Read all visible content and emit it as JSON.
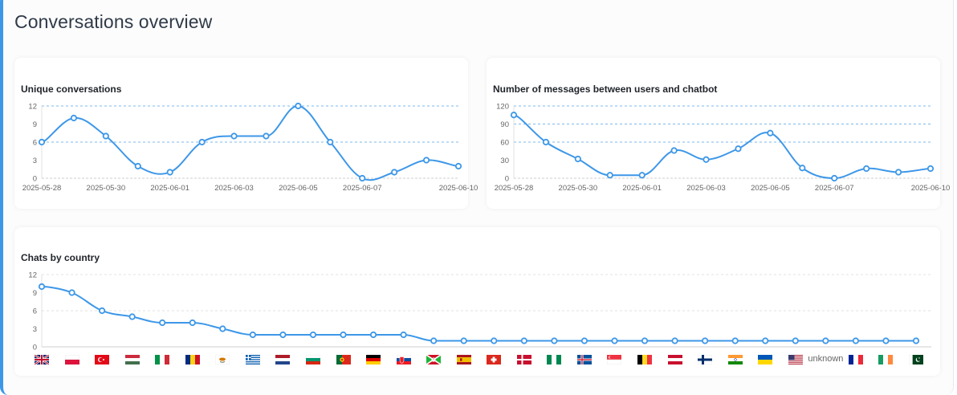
{
  "page": {
    "title": "Conversations overview"
  },
  "colors": {
    "accent": "#3d97e8",
    "line": "#3d97e8",
    "grid_blue": "#7db8ec",
    "grid_gray": "#e2e2e2",
    "axis_text": "#666666"
  },
  "cards": {
    "unique": {
      "title": "Unique conversations"
    },
    "messages": {
      "title": "Number of messages between users and chatbot"
    },
    "country": {
      "title": "Chats by country"
    }
  },
  "chart_data": [
    {
      "type": "line",
      "title": "Unique conversations",
      "x": [
        "2025-05-28",
        "2025-05-29",
        "2025-05-30",
        "2025-05-31",
        "2025-06-01",
        "2025-06-02",
        "2025-06-03",
        "2025-06-04",
        "2025-06-05",
        "2025-06-06",
        "2025-06-07",
        "2025-06-08",
        "2025-06-09",
        "2025-06-10"
      ],
      "x_tick_labels": [
        "2025-05-28",
        "2025-05-30",
        "2025-06-01",
        "2025-06-03",
        "2025-06-05",
        "2025-06-07",
        "2025-06-10"
      ],
      "values": [
        6,
        10,
        7,
        2,
        1,
        6,
        7,
        7,
        12,
        6,
        0,
        1,
        3,
        2
      ],
      "yticks": [
        0,
        3,
        6,
        9,
        12
      ],
      "ylim": [
        0,
        12
      ],
      "xlabel": "",
      "ylabel": "",
      "grid": "dashed at 6 and 12"
    },
    {
      "type": "line",
      "title": "Number of messages between users and chatbot",
      "x": [
        "2025-05-28",
        "2025-05-29",
        "2025-05-30",
        "2025-05-31",
        "2025-06-01",
        "2025-06-02",
        "2025-06-03",
        "2025-06-04",
        "2025-06-05",
        "2025-06-06",
        "2025-06-07",
        "2025-06-08",
        "2025-06-09",
        "2025-06-10"
      ],
      "x_tick_labels": [
        "2025-05-28",
        "2025-05-30",
        "2025-06-01",
        "2025-06-03",
        "2025-06-05",
        "2025-06-07",
        "2025-06-10"
      ],
      "values": [
        105,
        60,
        32,
        5,
        5,
        46,
        31,
        49,
        75,
        17,
        0,
        16,
        10,
        16
      ],
      "yticks": [
        0,
        30,
        60,
        90,
        120
      ],
      "ylim": [
        0,
        120
      ],
      "xlabel": "",
      "ylabel": "",
      "grid": "dashed at 60, 90, 120"
    },
    {
      "type": "line",
      "title": "Chats by country",
      "categories": [
        "GB",
        "PL",
        "TR",
        "HU",
        "IT",
        "RO",
        "CY",
        "GR",
        "NL",
        "BG",
        "PT",
        "DE",
        "SK",
        "BI",
        "ES",
        "CH",
        "DK",
        "NG",
        "IS",
        "SG",
        "BE",
        "AT",
        "FI",
        "IN",
        "UA",
        "US",
        "unknown",
        "FR",
        "IE",
        "PK"
      ],
      "values": [
        10,
        9,
        6,
        5,
        4,
        4,
        3,
        2,
        2,
        2,
        2,
        2,
        2,
        1,
        1,
        1,
        1,
        1,
        1,
        1,
        1,
        1,
        1,
        1,
        1,
        1,
        1,
        1,
        1,
        1
      ],
      "yticks": [
        0,
        3,
        6,
        9,
        12
      ],
      "ylim": [
        0,
        12
      ],
      "xlabel": "",
      "ylabel": "",
      "grid": "light dashed at 6 and 12"
    }
  ]
}
